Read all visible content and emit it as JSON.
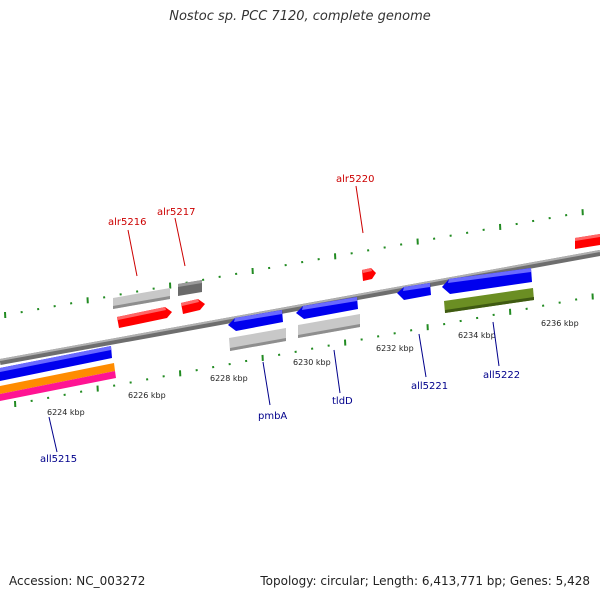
{
  "header": {
    "title": "Nostoc sp. PCC 7120, complete genome"
  },
  "footer": {
    "accession": "Accession: NC_003272",
    "stats": "Topology: circular; Length: 6,413,771 bp; Genes: 5,428"
  },
  "colors": {
    "forward_label": "#cc0000",
    "reverse_label": "#00008b",
    "backbone": "#8a8a8a",
    "tick": "#228b22",
    "red": "#ff0000",
    "blue": "#0000ee",
    "grey": "#bdbdbd",
    "darkgrey": "#666666",
    "olive": "#6b8e23",
    "orange": "#ff8c00",
    "pink": "#ff1493"
  },
  "scale_labels": [
    "6224 kbp",
    "6226 kbp",
    "6228 kbp",
    "6230 kbp",
    "6232 kbp",
    "6234 kbp",
    "6236 kbp"
  ],
  "gene_labels": {
    "alr5216": "alr5216",
    "alr5217": "alr5217",
    "alr5220": "alr5220",
    "all5215": "all5215",
    "pmbA": "pmbA",
    "tldD": "tldD",
    "all5221": "all5221",
    "all5222": "all5222"
  }
}
